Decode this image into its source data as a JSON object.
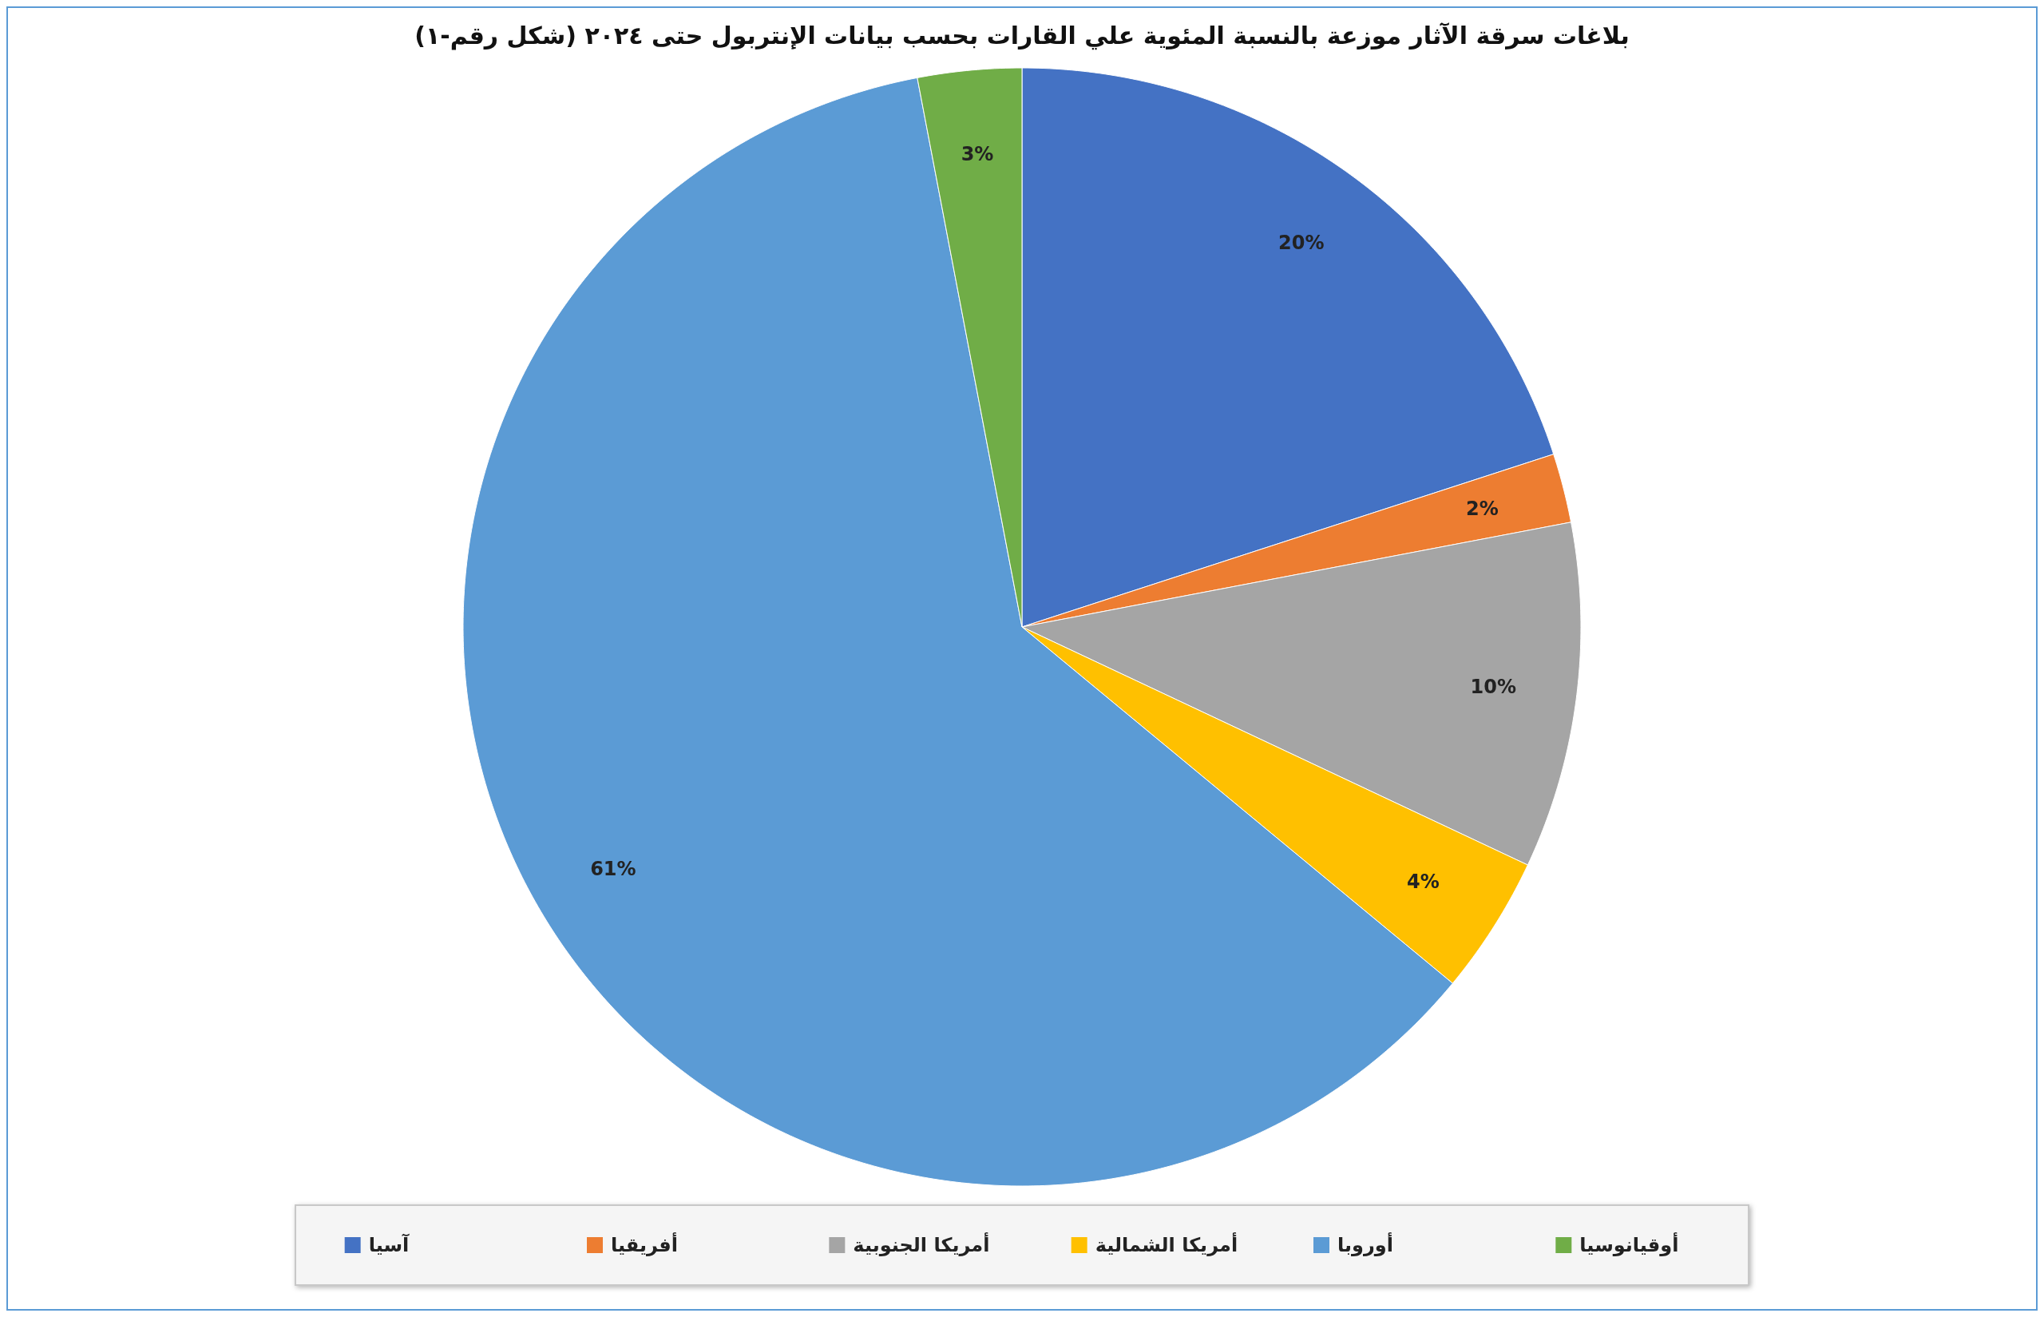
{
  "chart_data": {
    "type": "pie",
    "title": "بلاغات سرقة الآثار موزعة بالنسبة المئوية علي القارات بحسب بيانات الإنتربول حتى ٢٠٢٤ (شكل رقم-١)",
    "categories": [
      "آسيا",
      "أفريقيا",
      "أمريكا الجنوبية",
      "أمريكا الشمالية",
      "أوروبا",
      "أوقيانوسيا"
    ],
    "values": [
      20,
      2,
      10,
      4,
      61,
      3
    ],
    "colors": [
      "#4472c4",
      "#ed7d31",
      "#a5a5a5",
      "#ffc000",
      "#5b9bd5",
      "#70ad47"
    ],
    "value_labels": [
      "20%",
      "2%",
      "10%",
      "4%",
      "61%",
      "3%"
    ],
    "legend": "bottom"
  }
}
